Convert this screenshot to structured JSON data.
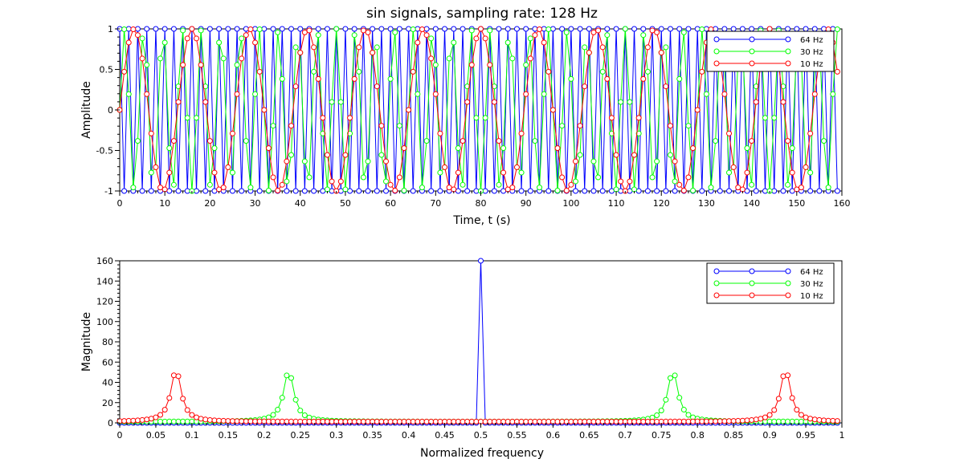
{
  "figure": {
    "title": "sin signals, sampling rate: 128 Hz"
  },
  "chart_data": [
    {
      "type": "line",
      "xlabel": "Time, t (s)",
      "ylabel": "Amplitude",
      "xlim": [
        0,
        160
      ],
      "ylim": [
        -1,
        1
      ],
      "xticks": [
        0,
        10,
        20,
        30,
        40,
        50,
        60,
        70,
        80,
        90,
        100,
        110,
        120,
        130,
        140,
        150,
        160
      ],
      "xtick_labels": [
        "0",
        "10",
        "20",
        "30",
        "40",
        "50",
        "60",
        "70",
        "80",
        "90",
        "100",
        "110",
        "120",
        "130",
        "140",
        "150",
        "160"
      ],
      "yticks": [
        -1,
        -0.5,
        0,
        0.5,
        1
      ],
      "ytick_labels": [
        "-1",
        "-0.5",
        "0",
        "0.5",
        "1"
      ],
      "legend": "top-right",
      "grid": false,
      "series": [
        {
          "name": "64 Hz",
          "color": "#0000ff",
          "marker": "circle",
          "function": "sin",
          "frequency_hz": 64,
          "sampling_rate_hz": 128,
          "samples": 160
        },
        {
          "name": "30 Hz",
          "color": "#00ff00",
          "marker": "circle",
          "function": "sin",
          "frequency_hz": 30,
          "sampling_rate_hz": 128,
          "samples": 160
        },
        {
          "name": "10 Hz",
          "color": "#ff0000",
          "marker": "circle",
          "function": "sin",
          "frequency_hz": 10,
          "sampling_rate_hz": 128,
          "samples": 160
        }
      ]
    },
    {
      "type": "line",
      "xlabel": "Normalized frequency",
      "ylabel": "Magnitude",
      "xlim": [
        0,
        1
      ],
      "ylim": [
        0,
        160
      ],
      "xticks": [
        0,
        0.05,
        0.1,
        0.15,
        0.2,
        0.25,
        0.3,
        0.35,
        0.4,
        0.45,
        0.5,
        0.55,
        0.6,
        0.65,
        0.7,
        0.75,
        0.8,
        0.85,
        0.9,
        0.95,
        1
      ],
      "xtick_labels": [
        "0",
        "0.05",
        "0.1",
        "0.15",
        "0.2",
        "0.25",
        "0.3",
        "0.35",
        "0.4",
        "0.45",
        "0.5",
        "0.55",
        "0.6",
        "0.65",
        "0.7",
        "0.75",
        "0.8",
        "0.85",
        "0.9",
        "0.95",
        "1"
      ],
      "yticks": [
        0,
        20,
        40,
        60,
        80,
        100,
        120,
        140,
        160
      ],
      "ytick_labels": [
        "0",
        "20",
        "40",
        "60",
        "80",
        "100",
        "120",
        "140",
        "160"
      ],
      "legend": "top-right",
      "grid": false,
      "series": [
        {
          "name": "64 Hz",
          "color": "#0000ff",
          "marker": "circle",
          "peak_at": [
            0.5
          ],
          "peak_value": 160
        },
        {
          "name": "30 Hz",
          "color": "#00ff00",
          "marker": "circle",
          "peak_at": [
            0.234,
            0.766
          ],
          "peak_value": 50.5
        },
        {
          "name": "10 Hz",
          "color": "#ff0000",
          "marker": "circle",
          "peak_at": [
            0.078,
            0.922
          ],
          "peak_value": 51.5
        }
      ]
    }
  ]
}
